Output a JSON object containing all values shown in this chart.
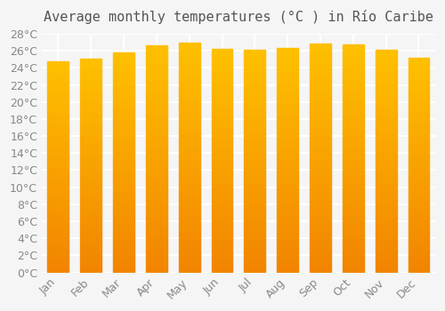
{
  "months": [
    "Jan",
    "Feb",
    "Mar",
    "Apr",
    "May",
    "Jun",
    "Jul",
    "Aug",
    "Sep",
    "Oct",
    "Nov",
    "Dec"
  ],
  "values": [
    24.8,
    25.1,
    25.8,
    26.6,
    27.0,
    26.2,
    26.1,
    26.3,
    26.9,
    26.8,
    26.1,
    25.2
  ],
  "bar_color_top": "#FFC107",
  "bar_color_bottom": "#FFB300",
  "title": "Average monthly temperatures (°C ) in Río Caribe",
  "ylabel": "",
  "xlabel": "",
  "ylim": [
    0,
    28
  ],
  "ytick_step": 2,
  "background_color": "#f5f5f5",
  "grid_color": "#ffffff",
  "title_fontsize": 11,
  "tick_fontsize": 9,
  "bar_edge_color": "#E65100"
}
